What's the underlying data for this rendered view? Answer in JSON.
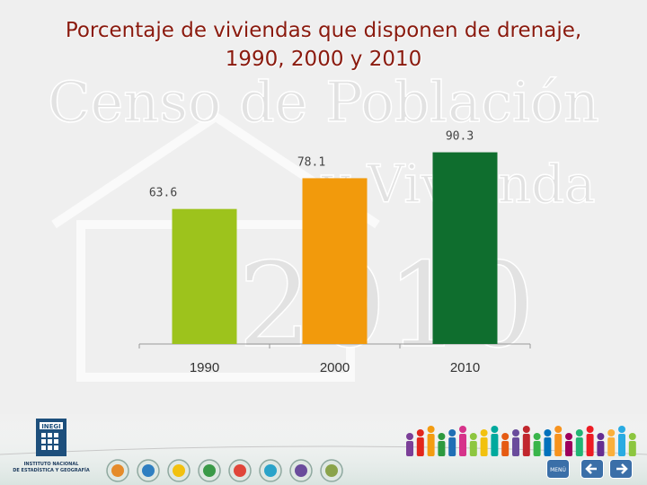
{
  "title_line1": "Porcentaje de viviendas que disponen de drenaje,",
  "title_line2": "1990, 2000 y 2010",
  "watermark": [
    "Censo de Población",
    "y Vivienda",
    "2010"
  ],
  "logo": {
    "name": "INEGI",
    "line1": "INSTITUTO NACIONAL",
    "line2": "DE ESTADÍSTICA Y GEOGRAFÍA"
  },
  "nav": {
    "menu_label": "MENÚ",
    "prev_icon": "arrow-left-icon",
    "next_icon": "arrow-right-icon"
  },
  "colors": {
    "title": "#8a1a0e",
    "bar_1990": "#9dc31c",
    "bar_2000": "#f29a0c",
    "bar_2010": "#0f6e2e"
  },
  "chart_data": {
    "type": "bar",
    "title": "Porcentaje de viviendas que disponen de drenaje, 1990, 2000 y 2010",
    "categories": [
      "1990",
      "2000",
      "2010"
    ],
    "values": [
      63.6,
      78.1,
      90.3
    ],
    "data_labels": [
      "63.6",
      "78.1",
      "90.3"
    ],
    "colors": [
      "#9dc31c",
      "#f29a0c",
      "#0f6e2e"
    ],
    "ylim": [
      0,
      110
    ],
    "grid": false,
    "legend": "none"
  }
}
